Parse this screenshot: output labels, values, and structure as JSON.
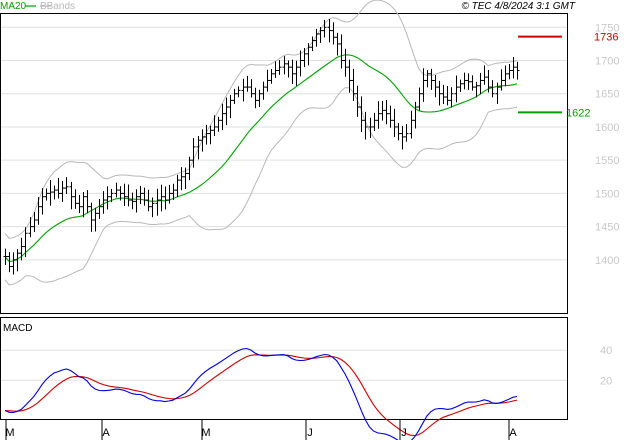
{
  "legend": {
    "ma_label": "MA20",
    "bb_label": "BBands",
    "copyright": "© TEC 4/8/2024 3:1 GMT"
  },
  "macd_label": "MACD",
  "colors": {
    "price_bars": "#000000",
    "ma": "#00a000",
    "bbands": "#b8b8b8",
    "grid": "#e0e0e0",
    "axis": "#000000",
    "resistance": "#cc0000",
    "support": "#00a000",
    "macd_line": "#0000dd",
    "signal_line": "#cc0000",
    "tick_text": "#c8c8c8"
  },
  "chart_data": [
    {
      "type": "ohlc",
      "x_labels": [
        "M",
        "A",
        "M",
        "J",
        "J",
        "A"
      ],
      "ylim": [
        1320,
        1770
      ],
      "y_ticks": [
        "1400",
        "1450",
        "1500",
        "1550",
        "1600",
        "1650",
        "1700",
        "1750"
      ],
      "close": [
        1405,
        1390,
        1400,
        1410,
        1420,
        1440,
        1450,
        1460,
        1480,
        1495,
        1500,
        1502,
        1505,
        1500,
        1508,
        1510,
        1495,
        1485,
        1480,
        1495,
        1480,
        1460,
        1470,
        1480,
        1490,
        1495,
        1500,
        1505,
        1500,
        1495,
        1490,
        1488,
        1495,
        1500,
        1490,
        1480,
        1485,
        1490,
        1495,
        1490,
        1500,
        1505,
        1520,
        1525,
        1530,
        1550,
        1570,
        1580,
        1585,
        1590,
        1595,
        1600,
        1610,
        1620,
        1630,
        1640,
        1650,
        1655,
        1660,
        1660,
        1650,
        1640,
        1650,
        1660,
        1670,
        1680,
        1685,
        1690,
        1695,
        1690,
        1680,
        1690,
        1700,
        1710,
        1720,
        1730,
        1740,
        1745,
        1750,
        1745,
        1735,
        1725,
        1700,
        1690,
        1670,
        1650,
        1630,
        1610,
        1600,
        1600,
        1610,
        1620,
        1625,
        1620,
        1610,
        1600,
        1590,
        1585,
        1590,
        1610,
        1630,
        1650,
        1670,
        1680,
        1670,
        1660,
        1650,
        1645,
        1640,
        1650,
        1660,
        1665,
        1670,
        1668,
        1660,
        1662,
        1670,
        1675,
        1660,
        1650,
        1660,
        1670,
        1680,
        1685,
        1690,
        1685
      ],
      "resistance": {
        "value": 1736,
        "label": "1736"
      },
      "support": {
        "value": 1622,
        "label": "1622"
      },
      "indicators": [
        "MA20",
        "BBands"
      ]
    },
    {
      "type": "line",
      "title": "MACD",
      "ylim": [
        -5,
        60
      ],
      "y_ticks": [
        "20",
        "40"
      ],
      "series_names": [
        "MACD",
        "Signal"
      ]
    }
  ]
}
